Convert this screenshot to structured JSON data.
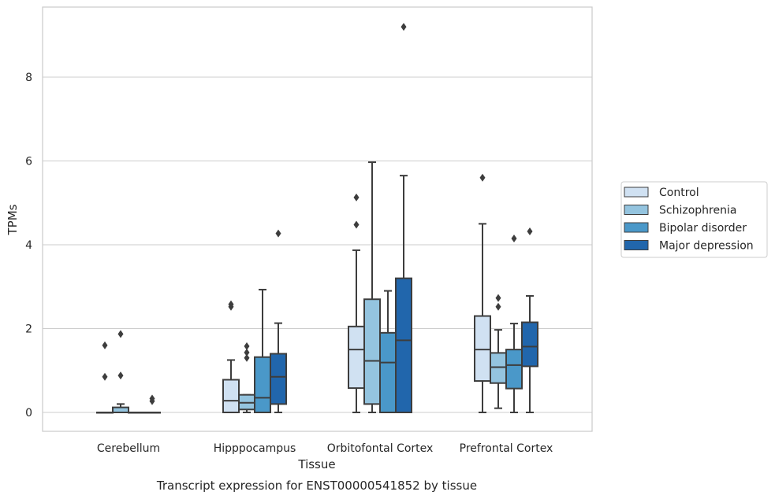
{
  "chart_data": {
    "type": "box",
    "caption": "Transcript expression for ENST00000541852 by tissue",
    "xlabel": "Tissue",
    "ylabel": "TPMs",
    "ylim": [
      -0.45,
      9.7
    ],
    "yticks": [
      0,
      2,
      4,
      6,
      8
    ],
    "grid": "horizontal",
    "legend_placement": "right",
    "categories": [
      "Cerebellum",
      "Hipppocampus",
      "Orbitofontal Cortex",
      "Prefrontal Cortex"
    ],
    "series": [
      {
        "name": "Control",
        "color": "#d0e1f2",
        "boxes": [
          {
            "whisker_low": 0,
            "q1": 0,
            "median": 0,
            "q3": 0,
            "whisker_high": 0,
            "outliers": [
              0.85,
              1.6
            ]
          },
          {
            "whisker_low": 0,
            "q1": 0,
            "median": 0.28,
            "q3": 0.78,
            "whisker_high": 1.25,
            "outliers": [
              2.52,
              2.58
            ]
          },
          {
            "whisker_low": 0,
            "q1": 0.58,
            "median": 1.5,
            "q3": 2.05,
            "whisker_high": 3.87,
            "outliers": [
              4.48,
              5.13
            ]
          },
          {
            "whisker_low": 0,
            "q1": 0.75,
            "median": 1.5,
            "q3": 2.3,
            "whisker_high": 4.5,
            "outliers": [
              5.6
            ]
          }
        ]
      },
      {
        "name": "Schizophrenia",
        "color": "#94c4df",
        "boxes": [
          {
            "whisker_low": 0,
            "q1": 0,
            "median": 0,
            "q3": 0.12,
            "whisker_high": 0.2,
            "outliers": [
              0.88,
              1.87
            ]
          },
          {
            "whisker_low": 0,
            "q1": 0.07,
            "median": 0.23,
            "q3": 0.42,
            "whisker_high": 0.42,
            "outliers": [
              1.3,
              1.43,
              1.58
            ]
          },
          {
            "whisker_low": 0,
            "q1": 0.2,
            "median": 1.23,
            "q3": 2.7,
            "whisker_high": 5.97,
            "outliers": []
          },
          {
            "whisker_low": 0.1,
            "q1": 0.7,
            "median": 1.08,
            "q3": 1.42,
            "whisker_high": 1.97,
            "outliers": [
              2.52,
              2.73
            ]
          }
        ]
      },
      {
        "name": "Bipolar disorder",
        "color": "#4a98c9",
        "boxes": [
          {
            "whisker_low": 0,
            "q1": 0,
            "median": 0,
            "q3": 0,
            "whisker_high": 0,
            "outliers": []
          },
          {
            "whisker_low": 0,
            "q1": 0,
            "median": 0.35,
            "q3": 1.32,
            "whisker_high": 2.93,
            "outliers": []
          },
          {
            "whisker_low": 0,
            "q1": 0,
            "median": 1.19,
            "q3": 1.9,
            "whisker_high": 2.9,
            "outliers": []
          },
          {
            "whisker_low": 0,
            "q1": 0.57,
            "median": 1.13,
            "q3": 1.5,
            "whisker_high": 2.12,
            "outliers": [
              4.15
            ]
          }
        ]
      },
      {
        "name": "Major depression",
        "color": "#2166ac",
        "boxes": [
          {
            "whisker_low": 0,
            "q1": 0,
            "median": 0,
            "q3": 0,
            "whisker_high": 0,
            "outliers": [
              0.27,
              0.33
            ]
          },
          {
            "whisker_low": 0,
            "q1": 0.2,
            "median": 0.85,
            "q3": 1.4,
            "whisker_high": 2.13,
            "outliers": [
              4.27
            ]
          },
          {
            "whisker_low": 0,
            "q1": 0,
            "median": 1.72,
            "q3": 3.2,
            "whisker_high": 5.65,
            "outliers": [
              9.2
            ]
          },
          {
            "whisker_low": 0,
            "q1": 1.1,
            "median": 1.57,
            "q3": 2.15,
            "whisker_high": 2.78,
            "outliers": [
              4.32
            ]
          }
        ]
      }
    ]
  }
}
